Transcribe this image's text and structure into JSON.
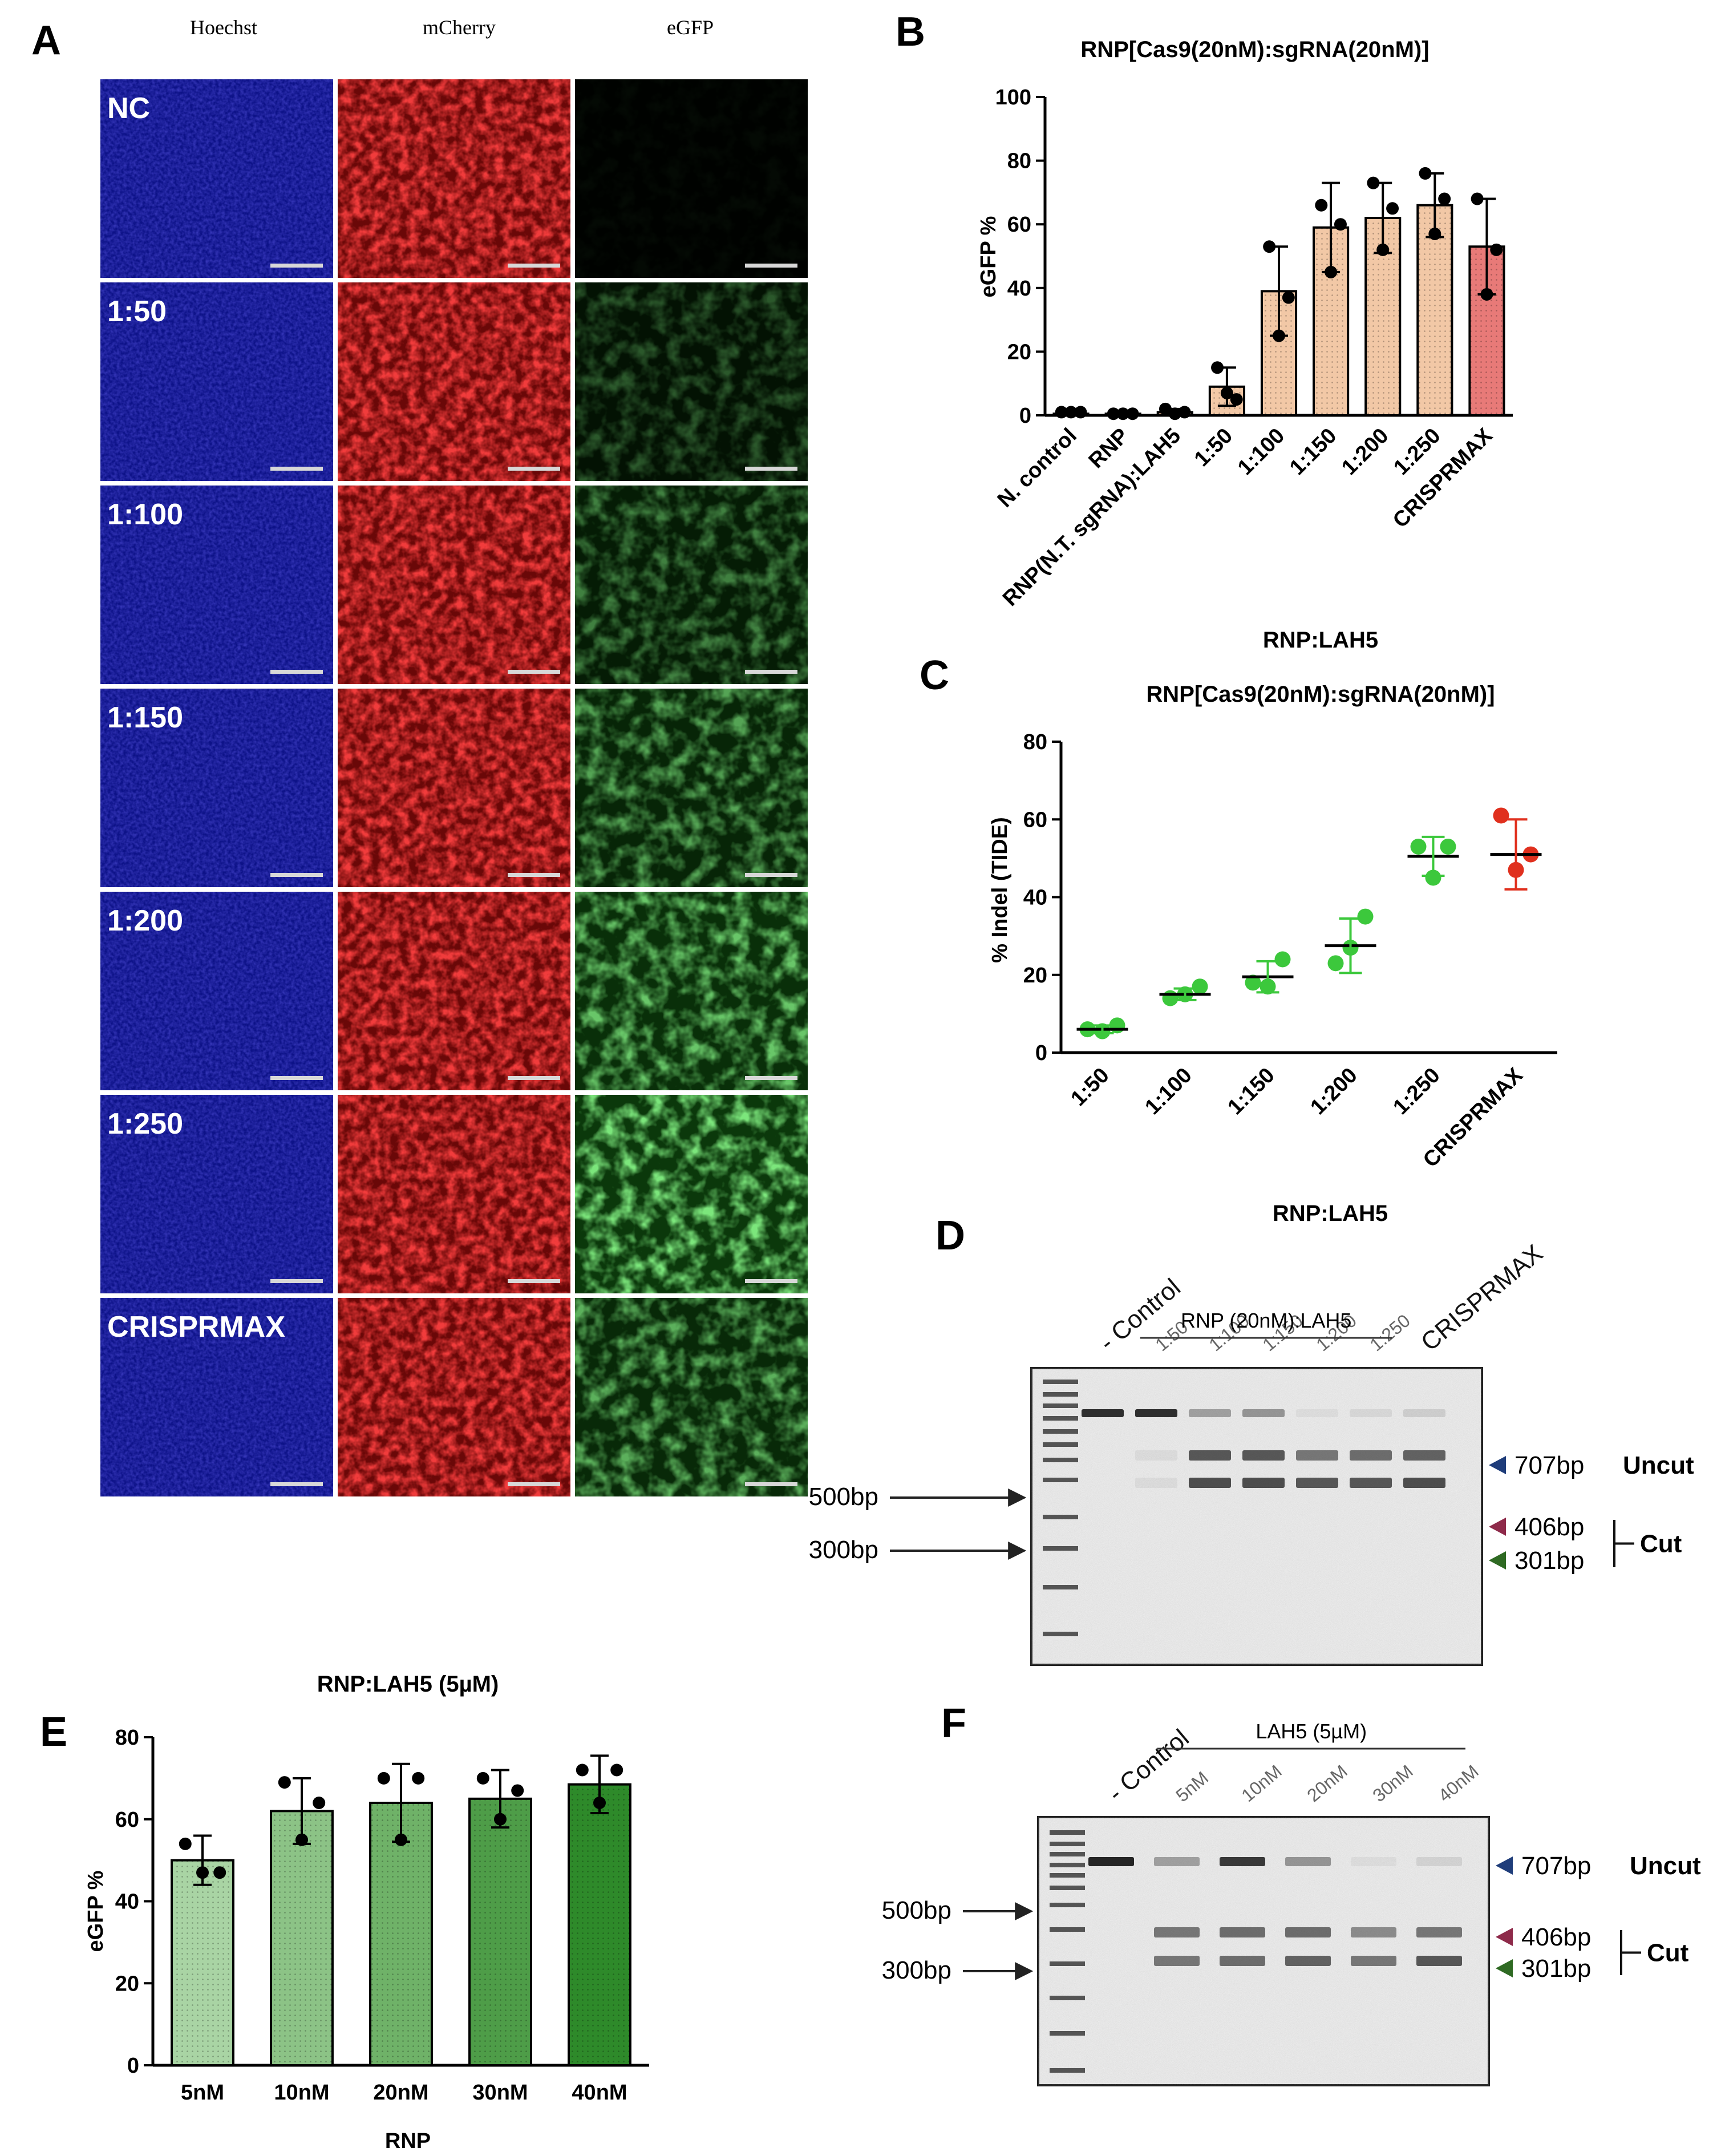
{
  "panelA": {
    "letter": "A",
    "columns": [
      "Hoechst",
      "mCherry",
      "eGFP"
    ],
    "rows": [
      "NC",
      "1:50",
      "1:100",
      "1:150",
      "1:200",
      "1:250",
      "CRISPRMAX"
    ],
    "green_intensity": [
      0.03,
      0.3,
      0.45,
      0.6,
      0.75,
      0.9,
      0.65
    ]
  },
  "panelB": {
    "letter": "B",
    "chart_data": {
      "type": "bar",
      "title": "RNP[Cas9(20nM):sgRNA(20nM)]",
      "ylabel": "eGFP %",
      "ylim": [
        0,
        100
      ],
      "yticks": [
        0,
        20,
        40,
        60,
        80,
        100
      ],
      "categories": [
        "N. control",
        "RNP",
        "RNP(N.T. sgRNA):LAH5",
        "1:50",
        "1:100",
        "1:150",
        "1:200",
        "1:250",
        "CRISPRMAX"
      ],
      "values": [
        0.5,
        0.5,
        1,
        9,
        39,
        59,
        62,
        66,
        53
      ],
      "errors": [
        0.5,
        0.5,
        1,
        6,
        14,
        14,
        11,
        10,
        15
      ],
      "points": [
        [
          1,
          1,
          1
        ],
        [
          0.5,
          0.5,
          0.5
        ],
        [
          2,
          1,
          0.5
        ],
        [
          15,
          5,
          7
        ],
        [
          53,
          37,
          25
        ],
        [
          66,
          60,
          45
        ],
        [
          73,
          65,
          52
        ],
        [
          76,
          68,
          57
        ],
        [
          68,
          52,
          38
        ]
      ],
      "colors": [
        "#d9a98a",
        "#d9a98a",
        "#d9a98a",
        "#f2c8a6",
        "#f2c8a6",
        "#f2c8a6",
        "#f2c8a6",
        "#f2c8a6",
        "#e87a78"
      ]
    }
  },
  "panelC": {
    "letter": "C",
    "chart_data": {
      "type": "scatter",
      "title": "RNP[Cas9(20nM):sgRNA(20nM)]",
      "title_top": "RNP:LAH5",
      "ylabel": "% Indel (TIDE)",
      "ylim": [
        0,
        80
      ],
      "yticks": [
        0,
        20,
        40,
        60,
        80
      ],
      "categories": [
        "1:50",
        "1:100",
        "1:150",
        "1:200",
        "1:250",
        "CRISPRMAX"
      ],
      "means": [
        6,
        15,
        19.5,
        27.5,
        50.5,
        51
      ],
      "sd": [
        1,
        1.5,
        4,
        7,
        5,
        9
      ],
      "points": [
        [
          6,
          7,
          5.5
        ],
        [
          14,
          17,
          15
        ],
        [
          18,
          24,
          17
        ],
        [
          23,
          35,
          27
        ],
        [
          53,
          53,
          45
        ],
        [
          61,
          51,
          47
        ]
      ],
      "colors": [
        "#3cc83c",
        "#3cc83c",
        "#3cc83c",
        "#3cc83c",
        "#3cc83c",
        "#e0301e"
      ]
    }
  },
  "panelD": {
    "letter": "D",
    "title": "RNP:LAH5",
    "lane_labels": [
      "- Control",
      "1:50",
      "1:100",
      "1:150",
      "1:200",
      "1:250",
      "CRISPRMAX"
    ],
    "group_label": "RNP (20nM):LAH5",
    "ladder_labels": [
      "500bp",
      "300bp"
    ],
    "band_labels": [
      "707bp",
      "406bp",
      "301bp"
    ],
    "uncut": "Uncut",
    "cut": "Cut"
  },
  "panelE": {
    "letter": "E",
    "chart_data": {
      "type": "bar",
      "title": "RNP:LAH5 (5µM)",
      "ylabel": "eGFP %",
      "xlabel": "RNP",
      "ylim": [
        0,
        80
      ],
      "yticks": [
        0,
        20,
        40,
        60,
        80
      ],
      "categories": [
        "5nM",
        "10nM",
        "20nM",
        "30nM",
        "40nM"
      ],
      "values": [
        50,
        62,
        64,
        65,
        68.5
      ],
      "errors": [
        6,
        8,
        9.5,
        7,
        7
      ],
      "points": [
        [
          54,
          47,
          47
        ],
        [
          69,
          64,
          55
        ],
        [
          70,
          70,
          55
        ],
        [
          70,
          67,
          60
        ],
        [
          72,
          72,
          64
        ]
      ],
      "colors": [
        "#a9d4a4",
        "#8cc386",
        "#6fb268",
        "#4e9d48",
        "#2e8a2a"
      ]
    }
  },
  "panelF": {
    "letter": "F",
    "lane_labels": [
      "- Control",
      "5nM",
      "10nM",
      "20nM",
      "30nM",
      "40nM"
    ],
    "group_label": "LAH5 (5µM)",
    "ladder_labels": [
      "500bp",
      "300bp"
    ],
    "band_labels": [
      "707bp",
      "406bp",
      "301bp"
    ],
    "uncut": "Uncut",
    "cut": "Cut"
  },
  "colors": {
    "blue_arrow": "#1f3d7a",
    "red_arrow": "#8e2a4a",
    "green_arrow": "#2f6a23"
  }
}
